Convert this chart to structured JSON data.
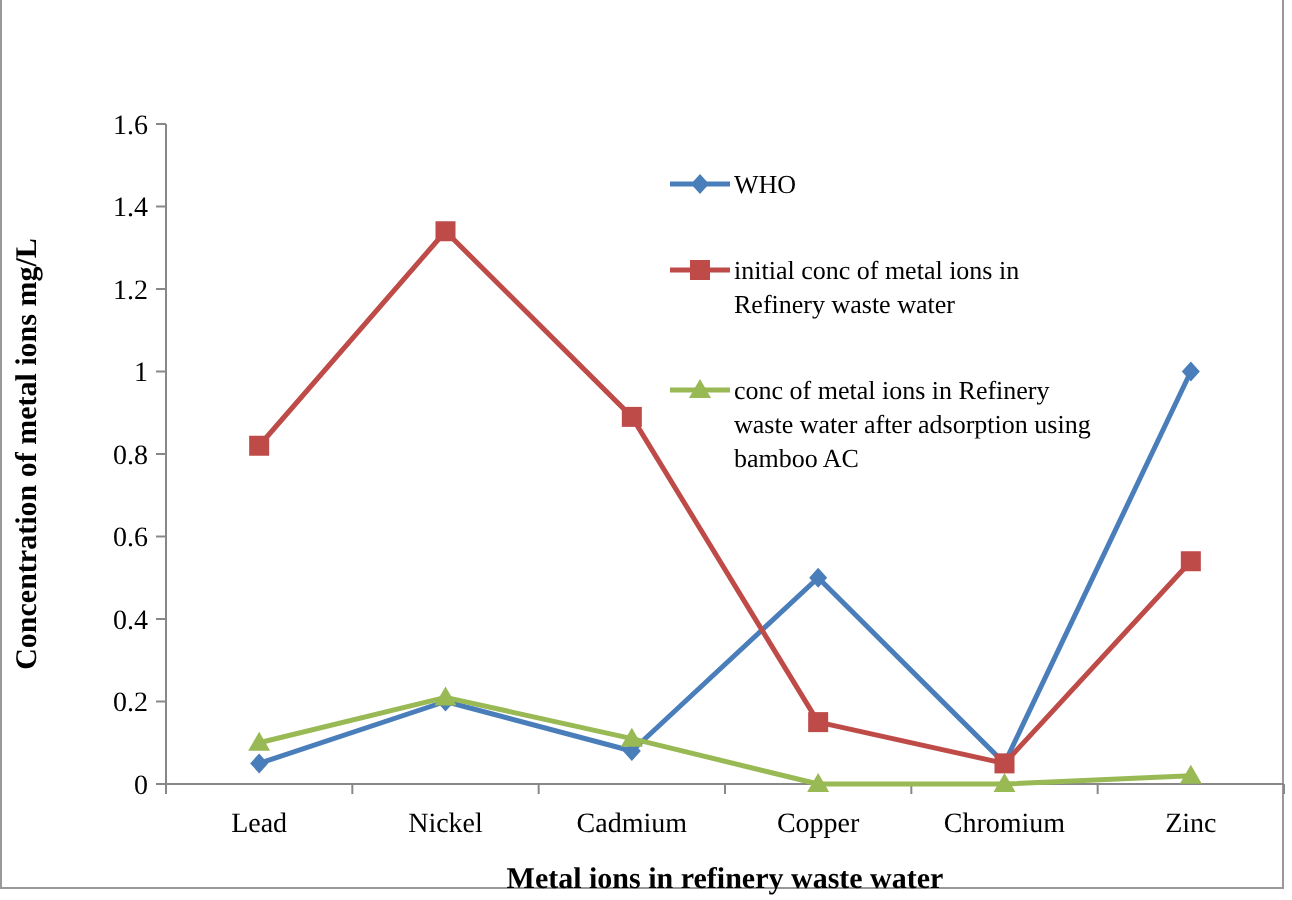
{
  "chart_data": {
    "type": "line",
    "xlabel": "Metal ions in refinery waste water",
    "ylabel": "Concentration of metal ions mg/L",
    "categories": [
      "Lead",
      "Nickel",
      "Cadmium",
      "Copper",
      "Chromium",
      "Zinc"
    ],
    "ylim": [
      0,
      1.6
    ],
    "yticks": [
      0,
      0.2,
      0.4,
      0.6,
      0.8,
      1,
      1.2,
      1.4,
      1.6
    ],
    "grid": false,
    "legend": "top right",
    "series": [
      {
        "name": "WHO",
        "color": "#4a7ebb",
        "marker": "diamond",
        "values": [
          0.05,
          0.2,
          0.08,
          0.5,
          0.05,
          1.0
        ]
      },
      {
        "name": "initial conc of metal ions in Refinery waste water",
        "color": "#be4b48",
        "marker": "square",
        "values": [
          0.82,
          1.34,
          0.89,
          0.15,
          0.05,
          0.54
        ]
      },
      {
        "name": "conc of metal ions in Refinery waste water after adsorption using bamboo AC",
        "color": "#98b954",
        "marker": "triangle",
        "values": [
          0.1,
          0.21,
          0.11,
          0,
          0,
          0.02
        ]
      }
    ]
  }
}
